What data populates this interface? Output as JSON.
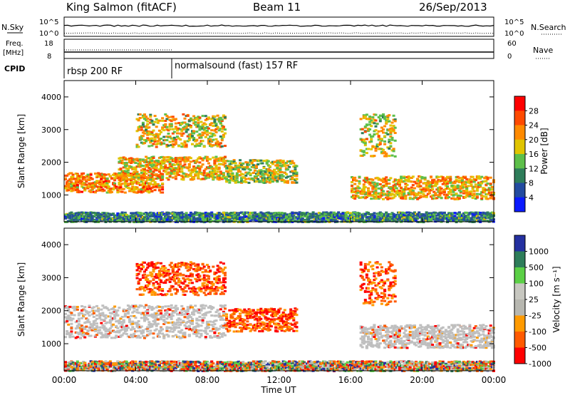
{
  "header": {
    "station": "King Salmon (fitACF)",
    "beam": "Beam 11",
    "date": "26/Sep/2013"
  },
  "status_panels": {
    "nsky_label": "N.Sky",
    "nsearch_label": "N.Search",
    "freq_label": "Freq.",
    "freq_unit": "[MHz]",
    "nave_label": "Nave",
    "cpid_label": "CPID",
    "left_ticks_noise": [
      "10^5",
      "10^0"
    ],
    "right_ticks_noise": [
      "10^5",
      "10^0"
    ],
    "left_ticks_freq": [
      "18",
      "8"
    ],
    "right_ticks_nave": [
      "60",
      "0"
    ],
    "cpid_segments": [
      {
        "label": "rbsp 200 RF",
        "start_hour": 0
      },
      {
        "label": "normalsound (fast) 157 RF",
        "start_hour": 6
      }
    ]
  },
  "colors": {
    "power_scale": [
      "#0a1aff",
      "#234ba0",
      "#2e7d5a",
      "#5dbf4a",
      "#e0c400",
      "#ff8a00",
      "#ff4a00",
      "#ff0000"
    ],
    "velocity_scale": [
      "#ff0000",
      "#ff5a00",
      "#ff9a00",
      "#b7b7b0",
      "#c7c7c0",
      "#5bd046",
      "#2e7d5a",
      "#2430a0"
    ],
    "ground_scatter": "#bfbfbf"
  },
  "chart_data": [
    {
      "type": "heatmap",
      "title": "Power",
      "ylabel": "Slant Range [km]",
      "xlabel": "Time UT",
      "x_ticks": [
        "00:00",
        "04:00",
        "08:00",
        "12:00",
        "16:00",
        "20:00",
        "00:00"
      ],
      "xlim_hours": [
        0,
        24
      ],
      "ylim_km": [
        180,
        4500
      ],
      "y_ticks": [
        1000,
        2000,
        3000,
        4000
      ],
      "colorbar_label": "Power [dB]",
      "colorbar_ticks": [
        "28",
        "24",
        "20",
        "16",
        "12",
        "8",
        "4"
      ],
      "colorbar_range_db": [
        0,
        32
      ],
      "echo_regions": [
        {
          "t_start": 0.0,
          "t_end": 5.5,
          "r_low": 1100,
          "r_high": 1700,
          "level_db": 22
        },
        {
          "t_start": 3.0,
          "t_end": 9.0,
          "r_low": 1500,
          "r_high": 2200,
          "level_db": 20
        },
        {
          "t_start": 4.0,
          "t_end": 9.0,
          "r_low": 2500,
          "r_high": 3500,
          "level_db": 18
        },
        {
          "t_start": 9.0,
          "t_end": 13.0,
          "r_low": 1400,
          "r_high": 2100,
          "level_db": 17
        },
        {
          "t_start": 16.0,
          "t_end": 24.0,
          "r_low": 900,
          "r_high": 1600,
          "level_db": 20
        },
        {
          "t_start": 16.5,
          "t_end": 18.5,
          "r_low": 2200,
          "r_high": 3500,
          "level_db": 18
        },
        {
          "t_start": 0.0,
          "t_end": 24.0,
          "r_low": 200,
          "r_high": 500,
          "level_db": 10
        }
      ]
    },
    {
      "type": "heatmap",
      "title": "Velocity",
      "ylabel": "Slant Range [km]",
      "xlabel": "Time UT",
      "x_ticks": [
        "00:00",
        "04:00",
        "08:00",
        "12:00",
        "16:00",
        "20:00",
        "00:00"
      ],
      "xlim_hours": [
        0,
        24
      ],
      "ylim_km": [
        180,
        4500
      ],
      "y_ticks": [
        1000,
        2000,
        3000,
        4000
      ],
      "colorbar_label": "Velocity [m s⁻¹]",
      "colorbar_ticks": [
        "1000",
        "500",
        "100",
        "25",
        "-25",
        "-100",
        "-500",
        "-1000"
      ],
      "echo_regions": [
        {
          "t_start": 0.0,
          "t_end": 9.0,
          "r_low": 1200,
          "r_high": 2200,
          "class": "ground"
        },
        {
          "t_start": 4.0,
          "t_end": 9.0,
          "r_low": 2500,
          "r_high": 3500,
          "class": "negative"
        },
        {
          "t_start": 9.0,
          "t_end": 13.0,
          "r_low": 1400,
          "r_high": 2100,
          "class": "negative"
        },
        {
          "t_start": 16.5,
          "t_end": 24.0,
          "r_low": 900,
          "r_high": 1600,
          "class": "ground"
        },
        {
          "t_start": 16.5,
          "t_end": 18.5,
          "r_low": 2200,
          "r_high": 3500,
          "class": "negative"
        },
        {
          "t_start": 0.0,
          "t_end": 24.0,
          "r_low": 200,
          "r_high": 500,
          "class": "mixed"
        }
      ]
    }
  ]
}
